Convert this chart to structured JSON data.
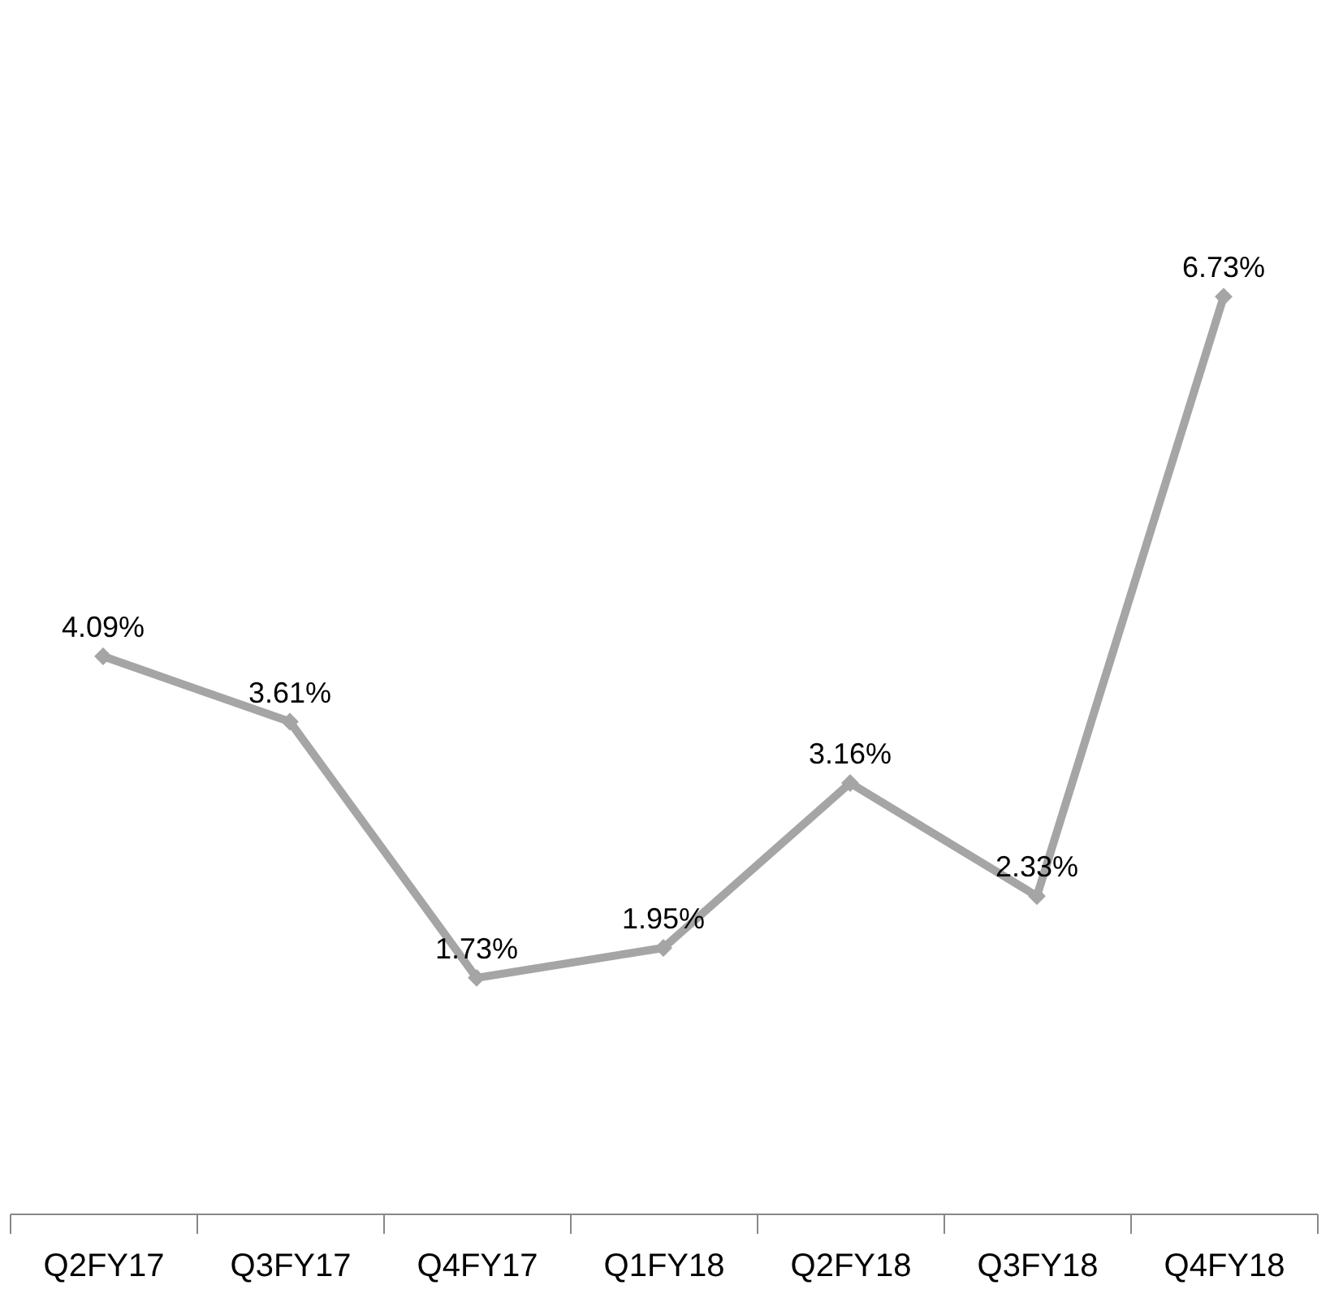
{
  "chart_data": {
    "type": "line",
    "categories": [
      "Q2FY17",
      "Q3FY17",
      "Q4FY17",
      "Q1FY18",
      "Q2FY18",
      "Q3FY18",
      "Q4FY18"
    ],
    "series": [
      {
        "color": "#a5a5a5",
        "values": [
          4.09,
          3.61,
          1.73,
          1.95,
          3.16,
          2.33,
          6.73
        ],
        "value_labels": [
          "4.09%",
          "3.61%",
          "1.73%",
          "1.95%",
          "3.16%",
          "2.33%",
          "6.73%"
        ]
      }
    ],
    "tick_labels": "x",
    "marker": "diamond",
    "line_style": "solid",
    "grid": false
  }
}
